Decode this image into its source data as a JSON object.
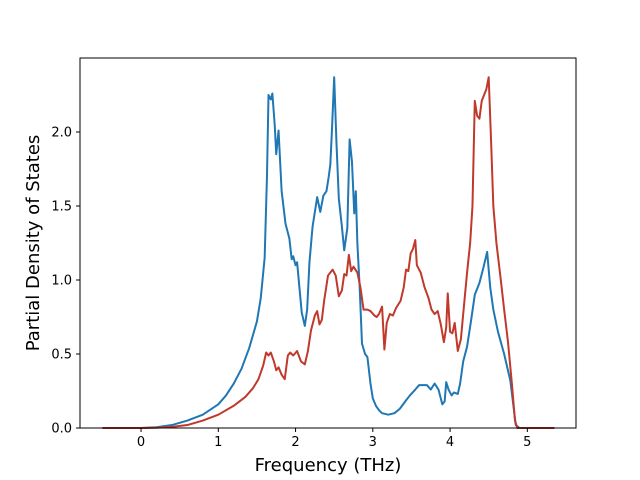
{
  "chart_data": {
    "type": "line",
    "title": "",
    "xlabel": "Frequency (THz)",
    "ylabel": "Partial Density of States",
    "xlim": [
      -0.79,
      5.63
    ],
    "ylim": [
      0.0,
      2.5
    ],
    "xticks": [
      0,
      1,
      2,
      3,
      4,
      5
    ],
    "xtick_labels": [
      "0",
      "1",
      "2",
      "3",
      "4",
      "5"
    ],
    "yticks": [
      0.0,
      0.5,
      1.0,
      1.5,
      2.0
    ],
    "ytick_labels": [
      "0.0",
      "0.5",
      "1.0",
      "1.5",
      "2.0"
    ],
    "grid": false,
    "legend": "none",
    "series": [
      {
        "color": "#1f77b4",
        "points": [
          [
            -0.5,
            0.0
          ],
          [
            0.0,
            0.0
          ],
          [
            0.2,
            0.005
          ],
          [
            0.4,
            0.02
          ],
          [
            0.6,
            0.05
          ],
          [
            0.8,
            0.09
          ],
          [
            1.0,
            0.16
          ],
          [
            1.1,
            0.22
          ],
          [
            1.2,
            0.3
          ],
          [
            1.3,
            0.4
          ],
          [
            1.4,
            0.54
          ],
          [
            1.5,
            0.72
          ],
          [
            1.55,
            0.88
          ],
          [
            1.6,
            1.15
          ],
          [
            1.63,
            1.7
          ],
          [
            1.65,
            2.25
          ],
          [
            1.68,
            2.22
          ],
          [
            1.7,
            2.26
          ],
          [
            1.73,
            2.05
          ],
          [
            1.75,
            1.85
          ],
          [
            1.78,
            2.01
          ],
          [
            1.82,
            1.6
          ],
          [
            1.87,
            1.38
          ],
          [
            1.92,
            1.28
          ],
          [
            1.95,
            1.14
          ],
          [
            1.97,
            1.16
          ],
          [
            2.0,
            1.1
          ],
          [
            2.02,
            1.12
          ],
          [
            2.05,
            0.95
          ],
          [
            2.08,
            0.78
          ],
          [
            2.12,
            0.69
          ],
          [
            2.15,
            0.8
          ],
          [
            2.18,
            1.12
          ],
          [
            2.22,
            1.36
          ],
          [
            2.28,
            1.56
          ],
          [
            2.32,
            1.46
          ],
          [
            2.36,
            1.57
          ],
          [
            2.4,
            1.6
          ],
          [
            2.43,
            1.7
          ],
          [
            2.45,
            1.78
          ],
          [
            2.47,
            2.0
          ],
          [
            2.5,
            2.37
          ],
          [
            2.53,
            1.92
          ],
          [
            2.56,
            1.55
          ],
          [
            2.6,
            1.36
          ],
          [
            2.63,
            1.2
          ],
          [
            2.67,
            1.35
          ],
          [
            2.7,
            1.95
          ],
          [
            2.73,
            1.8
          ],
          [
            2.76,
            1.45
          ],
          [
            2.78,
            1.6
          ],
          [
            2.8,
            1.25
          ],
          [
            2.83,
            0.95
          ],
          [
            2.86,
            0.57
          ],
          [
            2.9,
            0.5
          ],
          [
            2.93,
            0.48
          ],
          [
            2.97,
            0.3
          ],
          [
            3.0,
            0.2
          ],
          [
            3.04,
            0.15
          ],
          [
            3.08,
            0.12
          ],
          [
            3.12,
            0.1
          ],
          [
            3.2,
            0.09
          ],
          [
            3.28,
            0.1
          ],
          [
            3.35,
            0.13
          ],
          [
            3.42,
            0.18
          ],
          [
            3.48,
            0.22
          ],
          [
            3.55,
            0.26
          ],
          [
            3.6,
            0.29
          ],
          [
            3.7,
            0.29
          ],
          [
            3.75,
            0.26
          ],
          [
            3.8,
            0.3
          ],
          [
            3.85,
            0.26
          ],
          [
            3.9,
            0.16
          ],
          [
            3.93,
            0.18
          ],
          [
            3.95,
            0.31
          ],
          [
            3.98,
            0.26
          ],
          [
            4.02,
            0.22
          ],
          [
            4.05,
            0.24
          ],
          [
            4.1,
            0.23
          ],
          [
            4.13,
            0.3
          ],
          [
            4.17,
            0.45
          ],
          [
            4.22,
            0.55
          ],
          [
            4.27,
            0.72
          ],
          [
            4.32,
            0.9
          ],
          [
            4.38,
            0.98
          ],
          [
            4.43,
            1.08
          ],
          [
            4.48,
            1.19
          ],
          [
            4.52,
            0.95
          ],
          [
            4.56,
            0.8
          ],
          [
            4.62,
            0.65
          ],
          [
            4.7,
            0.5
          ],
          [
            4.78,
            0.32
          ],
          [
            4.82,
            0.15
          ],
          [
            4.85,
            0.02
          ],
          [
            4.9,
            0.0
          ],
          [
            5.35,
            0.0
          ]
        ]
      },
      {
        "color": "#c0392b",
        "points": [
          [
            -0.5,
            0.0
          ],
          [
            0.0,
            0.0
          ],
          [
            0.2,
            0.002
          ],
          [
            0.4,
            0.008
          ],
          [
            0.6,
            0.02
          ],
          [
            0.8,
            0.05
          ],
          [
            1.0,
            0.09
          ],
          [
            1.2,
            0.15
          ],
          [
            1.35,
            0.21
          ],
          [
            1.45,
            0.27
          ],
          [
            1.52,
            0.33
          ],
          [
            1.58,
            0.42
          ],
          [
            1.62,
            0.51
          ],
          [
            1.65,
            0.49
          ],
          [
            1.68,
            0.51
          ],
          [
            1.72,
            0.45
          ],
          [
            1.75,
            0.39
          ],
          [
            1.78,
            0.41
          ],
          [
            1.82,
            0.36
          ],
          [
            1.86,
            0.33
          ],
          [
            1.9,
            0.49
          ],
          [
            1.93,
            0.51
          ],
          [
            1.97,
            0.49
          ],
          [
            2.02,
            0.52
          ],
          [
            2.07,
            0.45
          ],
          [
            2.12,
            0.43
          ],
          [
            2.16,
            0.52
          ],
          [
            2.2,
            0.66
          ],
          [
            2.25,
            0.76
          ],
          [
            2.28,
            0.79
          ],
          [
            2.31,
            0.7
          ],
          [
            2.34,
            0.73
          ],
          [
            2.37,
            0.86
          ],
          [
            2.42,
            1.03
          ],
          [
            2.48,
            1.07
          ],
          [
            2.52,
            1.03
          ],
          [
            2.56,
            0.89
          ],
          [
            2.6,
            0.93
          ],
          [
            2.63,
            1.04
          ],
          [
            2.66,
            1.03
          ],
          [
            2.69,
            1.17
          ],
          [
            2.72,
            1.06
          ],
          [
            2.75,
            1.09
          ],
          [
            2.8,
            1.05
          ],
          [
            2.84,
            0.95
          ],
          [
            2.88,
            0.8
          ],
          [
            2.93,
            0.8
          ],
          [
            2.97,
            0.79
          ],
          [
            3.02,
            0.76
          ],
          [
            3.05,
            0.75
          ],
          [
            3.08,
            0.77
          ],
          [
            3.12,
            0.82
          ],
          [
            3.15,
            0.53
          ],
          [
            3.18,
            0.71
          ],
          [
            3.22,
            0.77
          ],
          [
            3.26,
            0.76
          ],
          [
            3.3,
            0.81
          ],
          [
            3.36,
            0.86
          ],
          [
            3.4,
            0.95
          ],
          [
            3.43,
            1.07
          ],
          [
            3.46,
            1.06
          ],
          [
            3.49,
            1.18
          ],
          [
            3.52,
            1.21
          ],
          [
            3.55,
            1.27
          ],
          [
            3.57,
            1.1
          ],
          [
            3.62,
            1.05
          ],
          [
            3.67,
            0.95
          ],
          [
            3.72,
            0.88
          ],
          [
            3.76,
            0.8
          ],
          [
            3.8,
            0.77
          ],
          [
            3.84,
            0.79
          ],
          [
            3.88,
            0.7
          ],
          [
            3.92,
            0.58
          ],
          [
            3.95,
            0.68
          ],
          [
            3.97,
            0.91
          ],
          [
            4.0,
            0.65
          ],
          [
            4.03,
            0.64
          ],
          [
            4.06,
            0.71
          ],
          [
            4.1,
            0.52
          ],
          [
            4.14,
            0.6
          ],
          [
            4.17,
            0.77
          ],
          [
            4.22,
            1.05
          ],
          [
            4.26,
            1.25
          ],
          [
            4.29,
            1.5
          ],
          [
            4.32,
            2.21
          ],
          [
            4.35,
            2.11
          ],
          [
            4.38,
            2.09
          ],
          [
            4.41,
            2.21
          ],
          [
            4.44,
            2.25
          ],
          [
            4.47,
            2.29
          ],
          [
            4.5,
            2.37
          ],
          [
            4.53,
            1.95
          ],
          [
            4.56,
            1.5
          ],
          [
            4.6,
            1.25
          ],
          [
            4.65,
            1.03
          ],
          [
            4.7,
            0.8
          ],
          [
            4.75,
            0.58
          ],
          [
            4.8,
            0.3
          ],
          [
            4.84,
            0.05
          ],
          [
            4.87,
            0.0
          ],
          [
            5.35,
            0.0
          ]
        ]
      }
    ]
  }
}
